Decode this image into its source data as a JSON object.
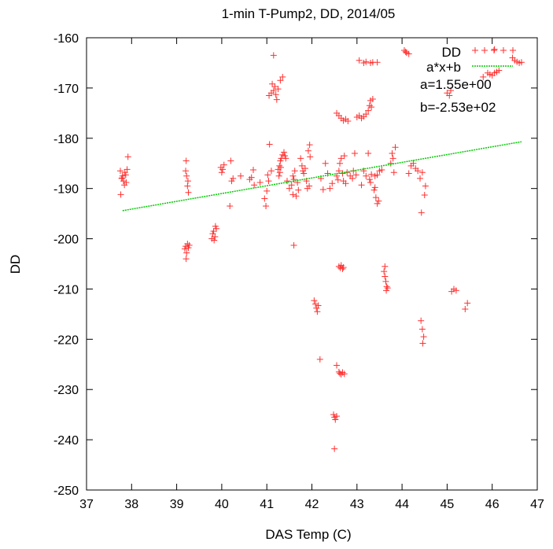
{
  "chart_data": {
    "type": "scatter",
    "title": "1-min T-Pump2, DD, 2014/05",
    "xlabel": "DAS Temp (C)",
    "ylabel": "DD",
    "xlim": [
      37,
      47
    ],
    "ylim": [
      -250,
      -160
    ],
    "xticks": [
      "37",
      "38",
      "39",
      "40",
      "41",
      "42",
      "43",
      "44",
      "45",
      "46",
      "47"
    ],
    "yticks": [
      "-160",
      "-170",
      "-180",
      "-190",
      "-200",
      "-210",
      "-220",
      "-230",
      "-240",
      "-250"
    ],
    "grid": false,
    "legend_position": "top-right",
    "series": [
      {
        "name": "DD",
        "marker": "plus",
        "color": "#ff3030",
        "points": [
          [
            37.75,
            -186.5
          ],
          [
            37.78,
            -188.0
          ],
          [
            37.8,
            -187.5
          ],
          [
            37.82,
            -188.5
          ],
          [
            37.85,
            -186.8
          ],
          [
            37.87,
            -187.3
          ],
          [
            37.88,
            -188.8
          ],
          [
            37.9,
            -186.2
          ],
          [
            37.76,
            -191.2
          ],
          [
            37.92,
            -183.7
          ],
          [
            37.84,
            -189.3
          ],
          [
            37.79,
            -187.9
          ],
          [
            39.2,
            -186.5
          ],
          [
            39.22,
            -187.5
          ],
          [
            39.24,
            -189.5
          ],
          [
            39.26,
            -190.8
          ],
          [
            39.21,
            -184.5
          ],
          [
            39.25,
            -188.5
          ],
          [
            39.18,
            -202.0
          ],
          [
            39.2,
            -201.5
          ],
          [
            39.22,
            -202.8
          ],
          [
            39.24,
            -201.0
          ],
          [
            39.26,
            -201.8
          ],
          [
            39.28,
            -201.3
          ],
          [
            39.21,
            -204.0
          ],
          [
            39.78,
            -200.0
          ],
          [
            39.8,
            -199.0
          ],
          [
            39.82,
            -198.5
          ],
          [
            39.85,
            -199.6
          ],
          [
            39.88,
            -198.0
          ],
          [
            39.83,
            -200.3
          ],
          [
            39.86,
            -197.5
          ],
          [
            39.98,
            -185.8
          ],
          [
            40.0,
            -186.8
          ],
          [
            40.02,
            -186.2
          ],
          [
            40.05,
            -185.3
          ],
          [
            40.2,
            -184.5
          ],
          [
            40.22,
            -188.5
          ],
          [
            40.25,
            -188.0
          ],
          [
            40.18,
            -193.5
          ],
          [
            40.42,
            -187.5
          ],
          [
            40.62,
            -188.2
          ],
          [
            40.66,
            -187.8
          ],
          [
            40.7,
            -186.3
          ],
          [
            40.72,
            -189.3
          ],
          [
            40.85,
            -188.8
          ],
          [
            40.95,
            -192.0
          ],
          [
            41.0,
            -190.5
          ],
          [
            41.02,
            -187.3
          ],
          [
            41.04,
            -188.5
          ],
          [
            41.06,
            -181.2
          ],
          [
            40.98,
            -193.5
          ],
          [
            41.1,
            -186.5
          ],
          [
            41.05,
            -171.5
          ],
          [
            41.1,
            -171.0
          ],
          [
            41.15,
            -170.5
          ],
          [
            41.2,
            -171.3
          ],
          [
            41.25,
            -170.2
          ],
          [
            41.3,
            -168.5
          ],
          [
            41.35,
            -167.8
          ],
          [
            41.12,
            -169.2
          ],
          [
            41.18,
            -169.7
          ],
          [
            41.22,
            -172.3
          ],
          [
            41.15,
            -163.5
          ],
          [
            41.25,
            -186.2
          ],
          [
            41.28,
            -185.5
          ],
          [
            41.3,
            -184.5
          ],
          [
            41.32,
            -184.0
          ],
          [
            41.35,
            -183.3
          ],
          [
            41.38,
            -182.8
          ],
          [
            41.4,
            -183.5
          ],
          [
            41.42,
            -184.0
          ],
          [
            41.27,
            -187.5
          ],
          [
            41.29,
            -186.8
          ],
          [
            41.31,
            -185.8
          ],
          [
            41.45,
            -188.5
          ],
          [
            41.5,
            -190.0
          ],
          [
            41.55,
            -189.3
          ],
          [
            41.58,
            -187.5
          ],
          [
            41.6,
            -188.2
          ],
          [
            41.62,
            -186.5
          ],
          [
            41.65,
            -191.5
          ],
          [
            41.68,
            -188.8
          ],
          [
            41.7,
            -190.3
          ],
          [
            41.58,
            -191.2
          ],
          [
            41.6,
            -201.3
          ],
          [
            41.75,
            -184.0
          ],
          [
            41.78,
            -185.5
          ],
          [
            41.8,
            -186.5
          ],
          [
            41.82,
            -187.0
          ],
          [
            41.85,
            -186.0
          ],
          [
            41.88,
            -188.5
          ],
          [
            41.9,
            -190.0
          ],
          [
            41.92,
            -182.5
          ],
          [
            41.95,
            -181.3
          ],
          [
            41.94,
            -189.5
          ],
          [
            41.96,
            -183.7
          ],
          [
            42.05,
            -212.3
          ],
          [
            42.08,
            -213.0
          ],
          [
            42.1,
            -213.8
          ],
          [
            42.12,
            -214.5
          ],
          [
            42.14,
            -213.3
          ],
          [
            42.18,
            -224.0
          ],
          [
            42.2,
            -188.0
          ],
          [
            42.25,
            -190.2
          ],
          [
            42.3,
            -185.0
          ],
          [
            42.35,
            -187.0
          ],
          [
            42.4,
            -190.0
          ],
          [
            42.45,
            -189.0
          ],
          [
            42.55,
            -175.0
          ],
          [
            42.6,
            -175.5
          ],
          [
            42.65,
            -176.0
          ],
          [
            42.7,
            -176.5
          ],
          [
            42.75,
            -176.2
          ],
          [
            42.8,
            -176.6
          ],
          [
            42.55,
            -187.5
          ],
          [
            42.58,
            -188.3
          ],
          [
            42.6,
            -186.5
          ],
          [
            42.62,
            -185.0
          ],
          [
            42.65,
            -184.0
          ],
          [
            42.68,
            -187.0
          ],
          [
            42.7,
            -188.5
          ],
          [
            42.72,
            -183.5
          ],
          [
            42.75,
            -189.0
          ],
          [
            42.78,
            -186.8
          ],
          [
            42.6,
            -205.5
          ],
          [
            42.63,
            -205.8
          ],
          [
            42.65,
            -205.3
          ],
          [
            42.68,
            -206.0
          ],
          [
            42.7,
            -205.7
          ],
          [
            42.48,
            -235.0
          ],
          [
            42.5,
            -235.5
          ],
          [
            42.52,
            -236.0
          ],
          [
            42.55,
            -235.3
          ],
          [
            42.5,
            -241.8
          ],
          [
            42.55,
            -225.2
          ],
          [
            42.6,
            -226.5
          ],
          [
            42.62,
            -226.8
          ],
          [
            42.65,
            -227.0
          ],
          [
            42.68,
            -226.6
          ],
          [
            42.72,
            -226.9
          ],
          [
            42.85,
            -187.5
          ],
          [
            42.9,
            -188.0
          ],
          [
            42.92,
            -186.5
          ],
          [
            42.95,
            -183.0
          ],
          [
            42.98,
            -187.3
          ],
          [
            43.0,
            -175.8
          ],
          [
            43.05,
            -175.5
          ],
          [
            43.1,
            -176.0
          ],
          [
            43.15,
            -175.7
          ],
          [
            43.2,
            -175.2
          ],
          [
            43.25,
            -174.5
          ],
          [
            43.28,
            -173.5
          ],
          [
            43.3,
            -172.5
          ],
          [
            43.32,
            -173.8
          ],
          [
            43.35,
            -172.2
          ],
          [
            43.05,
            -164.5
          ],
          [
            43.15,
            -165.0
          ],
          [
            43.2,
            -164.8
          ],
          [
            43.3,
            -165.0
          ],
          [
            43.35,
            -164.9
          ],
          [
            43.45,
            -164.9
          ],
          [
            43.1,
            -189.3
          ],
          [
            43.15,
            -186.5
          ],
          [
            43.2,
            -187.5
          ],
          [
            43.25,
            -183.0
          ],
          [
            43.28,
            -188.2
          ],
          [
            43.3,
            -188.8
          ],
          [
            43.32,
            -187.2
          ],
          [
            43.4,
            -187.5
          ],
          [
            43.45,
            -187.3
          ],
          [
            43.5,
            -186.5
          ],
          [
            43.55,
            -186.3
          ],
          [
            43.38,
            -190.3
          ],
          [
            43.42,
            -191.8
          ],
          [
            43.45,
            -193.0
          ],
          [
            43.48,
            -192.5
          ],
          [
            43.4,
            -189.8
          ],
          [
            43.6,
            -206.5
          ],
          [
            43.62,
            -207.5
          ],
          [
            43.64,
            -208.5
          ],
          [
            43.66,
            -209.5
          ],
          [
            43.68,
            -209.8
          ],
          [
            43.65,
            -210.3
          ],
          [
            43.62,
            -205.5
          ],
          [
            43.75,
            -185.0
          ],
          [
            43.8,
            -184.0
          ],
          [
            43.82,
            -186.8
          ],
          [
            43.85,
            -181.8
          ],
          [
            43.78,
            -183.0
          ],
          [
            44.05,
            -162.5
          ],
          [
            44.1,
            -163.0
          ],
          [
            44.15,
            -163.2
          ],
          [
            44.08,
            -162.8
          ],
          [
            44.15,
            -187.0
          ],
          [
            44.2,
            -185.5
          ],
          [
            44.25,
            -185.0
          ],
          [
            44.3,
            -186.0
          ],
          [
            44.35,
            -186.5
          ],
          [
            44.4,
            -188.0
          ],
          [
            44.45,
            -186.8
          ],
          [
            44.5,
            -191.3
          ],
          [
            44.52,
            -189.5
          ],
          [
            44.43,
            -194.8
          ],
          [
            44.42,
            -216.3
          ],
          [
            44.45,
            -218.0
          ],
          [
            44.48,
            -219.5
          ],
          [
            44.46,
            -220.8
          ],
          [
            45.0,
            -171.0
          ],
          [
            45.05,
            -171.5
          ],
          [
            45.08,
            -170.5
          ],
          [
            45.1,
            -210.5
          ],
          [
            45.15,
            -210.0
          ],
          [
            45.2,
            -210.3
          ],
          [
            45.4,
            -214.0
          ],
          [
            45.45,
            -212.8
          ],
          [
            45.9,
            -167.0
          ],
          [
            45.95,
            -167.3
          ],
          [
            46.0,
            -167.5
          ],
          [
            46.05,
            -167.0
          ],
          [
            46.1,
            -166.8
          ],
          [
            46.15,
            -166.5
          ],
          [
            46.05,
            -162.3
          ],
          [
            45.8,
            -167.8
          ],
          [
            46.45,
            -164.0
          ],
          [
            46.5,
            -164.5
          ],
          [
            46.55,
            -164.8
          ],
          [
            46.6,
            -165.0
          ],
          [
            46.65,
            -164.9
          ]
        ]
      },
      {
        "name": "a*x+b",
        "type": "line",
        "style": "dashed",
        "color": "#00cc00",
        "x_range": [
          37.8,
          46.65
        ],
        "a": 1.55,
        "b": -253.0
      }
    ],
    "annotations": [
      "a=1.55e+00",
      "b=-2.53e+02"
    ]
  }
}
